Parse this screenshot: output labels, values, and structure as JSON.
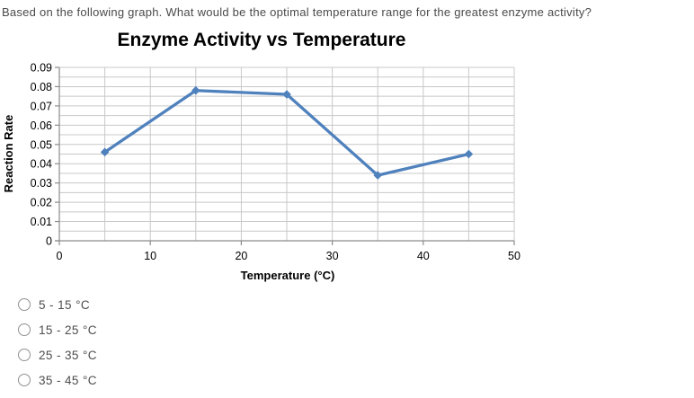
{
  "question": {
    "text": "Based on the following graph. What would be the optimal temperature range for the greatest enzyme activity?"
  },
  "chart_data": {
    "type": "line",
    "title": "Enzyme Activity vs Temperature",
    "xlabel": "Temperature (°C)",
    "ylabel": "Reaction Rate",
    "x": [
      5,
      15,
      25,
      35,
      45
    ],
    "y": [
      0.046,
      0.078,
      0.076,
      0.034,
      0.045
    ],
    "xlim": [
      0,
      50
    ],
    "ylim": [
      0,
      0.09
    ],
    "x_tick_step": 10,
    "y_tick_step": 0.01,
    "x_grid_step": 5,
    "y_grid_step": 0.005,
    "grid": true,
    "legend_position": "none",
    "marker": "diamond",
    "line_color": "#4F81BD",
    "grid_color": "#c8c8c8",
    "axis_color": "#8c8c8c"
  },
  "options": [
    {
      "label": "5 - 15 °C",
      "selected": false
    },
    {
      "label": "15 - 25 °C",
      "selected": false
    },
    {
      "label": "25 - 35 °C",
      "selected": false
    },
    {
      "label": "35 - 45 °C",
      "selected": false
    }
  ]
}
